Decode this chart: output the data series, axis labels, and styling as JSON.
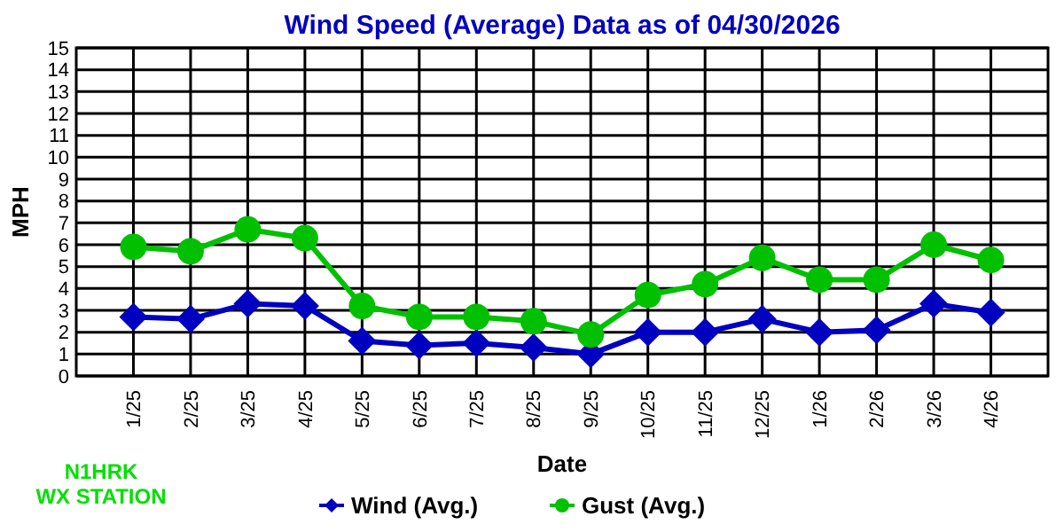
{
  "chart_data": {
    "type": "line",
    "title": "Wind Speed (Average) Data as of 04/30/2026",
    "xlabel": "Date",
    "ylabel": "MPH",
    "categories": [
      "1/25",
      "2/25",
      "3/25",
      "4/25",
      "5/25",
      "6/25",
      "7/25",
      "8/25",
      "9/25",
      "10/25",
      "11/25",
      "12/25",
      "1/26",
      "2/26",
      "3/26",
      "4/26"
    ],
    "series": [
      {
        "name": "Wind (Avg.)",
        "color": "#0000c0",
        "marker": "diamond",
        "values": [
          2.7,
          2.6,
          3.3,
          3.2,
          1.6,
          1.4,
          1.5,
          1.3,
          1.0,
          2.0,
          2.0,
          2.6,
          2.0,
          2.1,
          3.3,
          2.9
        ]
      },
      {
        "name": "Gust (Avg.)",
        "color": "#00c000",
        "marker": "circle",
        "values": [
          5.9,
          5.7,
          6.7,
          6.3,
          3.2,
          2.7,
          2.7,
          2.5,
          1.9,
          3.7,
          4.2,
          5.4,
          4.4,
          4.4,
          6.0,
          5.3
        ]
      }
    ],
    "ylim": [
      0,
      15
    ],
    "yticks": [
      0,
      1,
      2,
      3,
      4,
      5,
      6,
      7,
      8,
      9,
      10,
      11,
      12,
      13,
      14,
      15
    ],
    "grid": true,
    "legend": "bottom",
    "annotations": [
      "N1HRK\nWX STATION"
    ]
  }
}
